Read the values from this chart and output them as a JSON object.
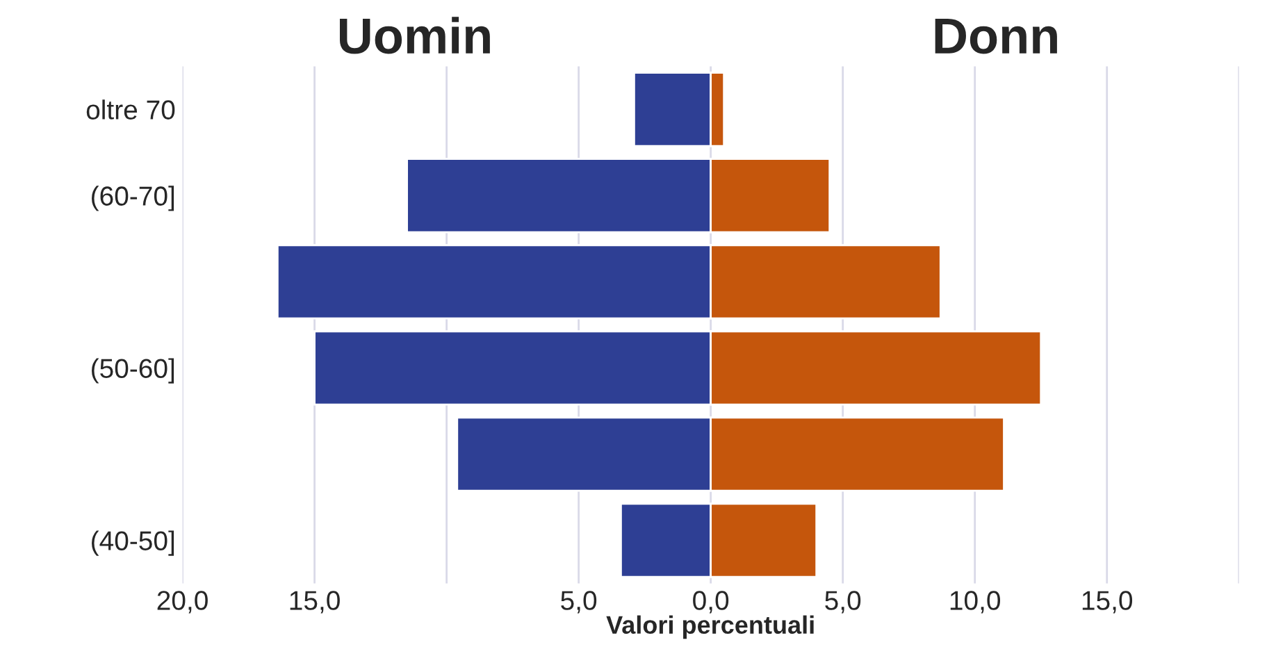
{
  "chart_data": {
    "type": "bar",
    "orientation": "horizontal",
    "stacked": true,
    "categories": [
      "oltre 70",
      "(60-70]",
      null,
      "(50-60]",
      null,
      "(40-50]"
    ],
    "series": [
      {
        "color": "#2e3f94",
        "values": [
          -2.9,
          -11.5,
          -16.4,
          -15.0,
          -9.6,
          -3.4
        ]
      },
      {
        "color": "#c5560c",
        "values": [
          0.5,
          4.5,
          8.7,
          12.5,
          11.1,
          4.0
        ]
      }
    ],
    "xlim": [
      -20,
      20
    ],
    "xticks": [
      {
        "value": -20,
        "label": "20,0"
      },
      {
        "value": -15,
        "label": "15,0"
      },
      {
        "value": -10,
        "label": null
      },
      {
        "value": -5,
        "label": "5,0"
      },
      {
        "value": 0,
        "label": "0,0"
      },
      {
        "value": 5,
        "label": "5,0"
      },
      {
        "value": 10,
        "label": "10,0"
      },
      {
        "value": 15,
        "label": "15,0"
      },
      {
        "value": 20,
        "label": null
      }
    ],
    "xlabel": "Valori percentuali",
    "annotations": [
      "Uomin",
      "Donn"
    ],
    "grid": "x"
  }
}
